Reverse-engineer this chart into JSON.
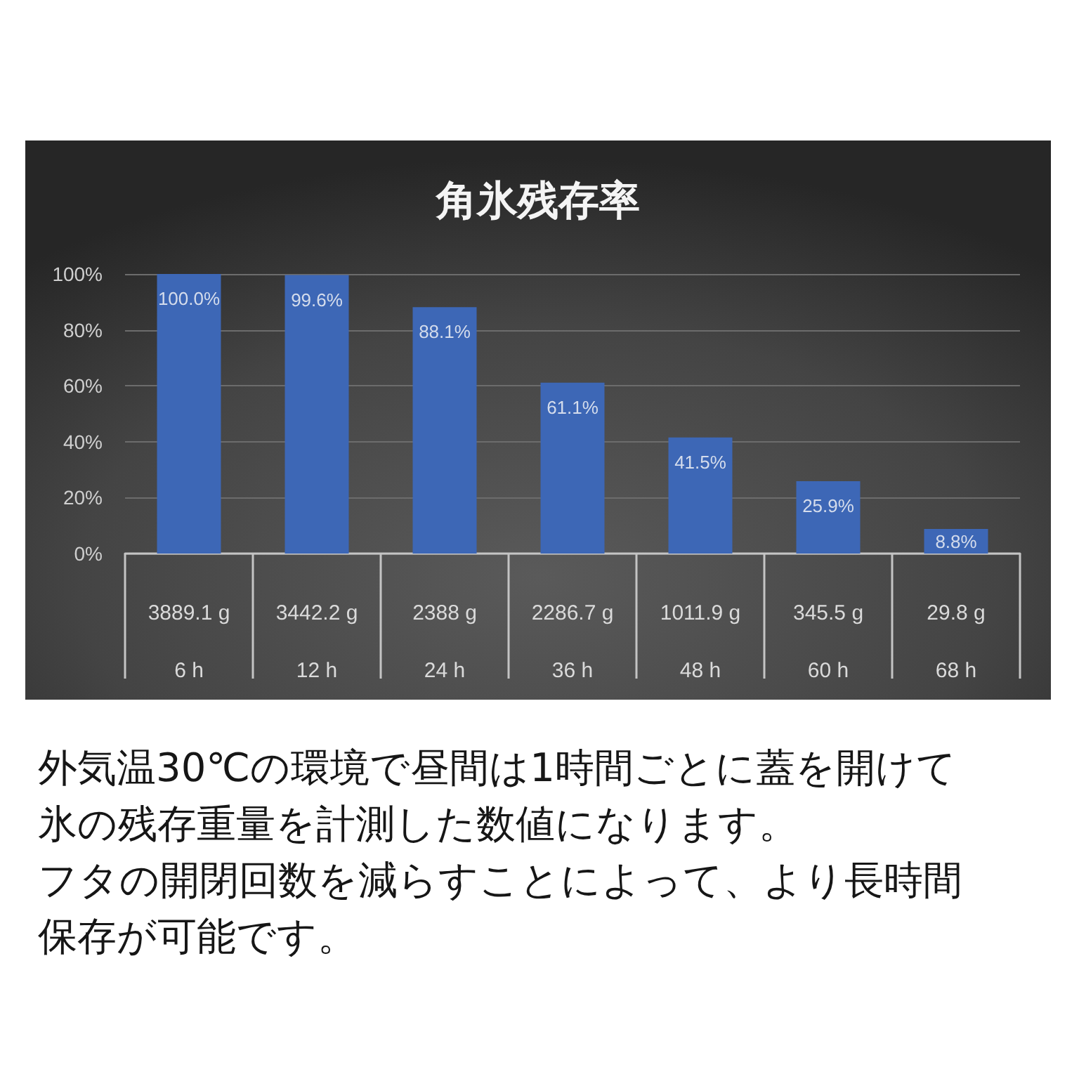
{
  "chart_data": {
    "type": "bar",
    "title": "角氷残存率",
    "categories": [
      "3889.1 g\n6 h",
      "3442.2 g\n12 h",
      "2388 g\n24 h",
      "2286.7 g\n36 h",
      "1011.9 g\n48 h",
      "345.5 g\n60 h",
      "29.8 g\n68 h"
    ],
    "values": [
      100,
      99.6,
      88.1,
      61.1,
      41.5,
      25.9,
      8.8
    ],
    "value_labels": [
      "100.0%",
      "99.6%",
      "88.1%",
      "61.1%",
      "41.5%",
      "25.9%",
      "8.8%"
    ],
    "color": "#3d67b6",
    "ylim": [
      0,
      100
    ],
    "yticks": [
      {
        "value": 0,
        "label": "0%"
      },
      {
        "value": 20,
        "label": "20%"
      },
      {
        "value": 40,
        "label": "40%"
      },
      {
        "value": 60,
        "label": "60%"
      },
      {
        "value": 80,
        "label": "80%"
      },
      {
        "value": 100,
        "label": "100%"
      }
    ],
    "grid": "y",
    "annotations": [
      "外気温30℃の環境で昼間は1時間ごとに蓋を開けて氷の残存重量を計測した数値になります。",
      "フタの開閉回数を減らすことによって、より長時間保存が可能です。"
    ]
  }
}
